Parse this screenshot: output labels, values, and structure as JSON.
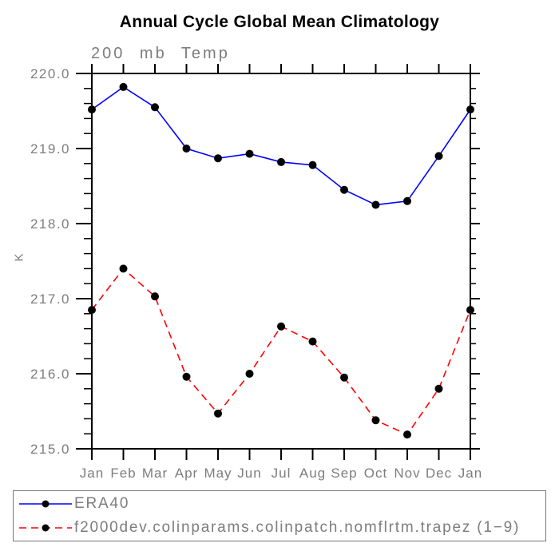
{
  "colors": {
    "axis": "#000000",
    "label": "#7d7d7d",
    "title": "#000000",
    "legend_border": "#777777",
    "marker": "#000000"
  },
  "chart_data": {
    "type": "line",
    "title": "Annual Cycle Global Mean Climatology",
    "subtitle": "200 mb Temp",
    "ylabel": "K",
    "xlabel": "",
    "x": [
      "Jan",
      "Feb",
      "Mar",
      "Apr",
      "May",
      "Jun",
      "Jul",
      "Aug",
      "Sep",
      "Oct",
      "Nov",
      "Dec",
      "Jan"
    ],
    "ylim": [
      215.0,
      220.0
    ],
    "yticks": [
      215.0,
      216.0,
      217.0,
      218.0,
      219.0,
      220.0
    ],
    "ytick_labels": [
      "215.0",
      "216.0",
      "217.0",
      "218.0",
      "219.0",
      "220.0"
    ],
    "y_minor_tick_step": 0.2,
    "grid": false,
    "legend_position": "bottom",
    "series": [
      {
        "name": "ERA40",
        "color": "#0000ff",
        "style": "solid",
        "marker": "filled-circle",
        "marker_color": "#000000",
        "values": [
          219.52,
          219.82,
          219.55,
          219.0,
          218.87,
          218.93,
          218.82,
          218.78,
          218.45,
          218.25,
          218.3,
          218.9,
          219.52
        ]
      },
      {
        "name": "f2000dev.colinparams.colinpatch.nomflrtm.trapez (1−9)",
        "color": "#ff0000",
        "style": "dashed",
        "marker": "filled-circle",
        "marker_color": "#000000",
        "values": [
          216.85,
          217.4,
          217.03,
          215.96,
          215.47,
          216.0,
          216.63,
          216.43,
          215.95,
          215.38,
          215.19,
          215.8,
          216.85
        ]
      }
    ]
  }
}
